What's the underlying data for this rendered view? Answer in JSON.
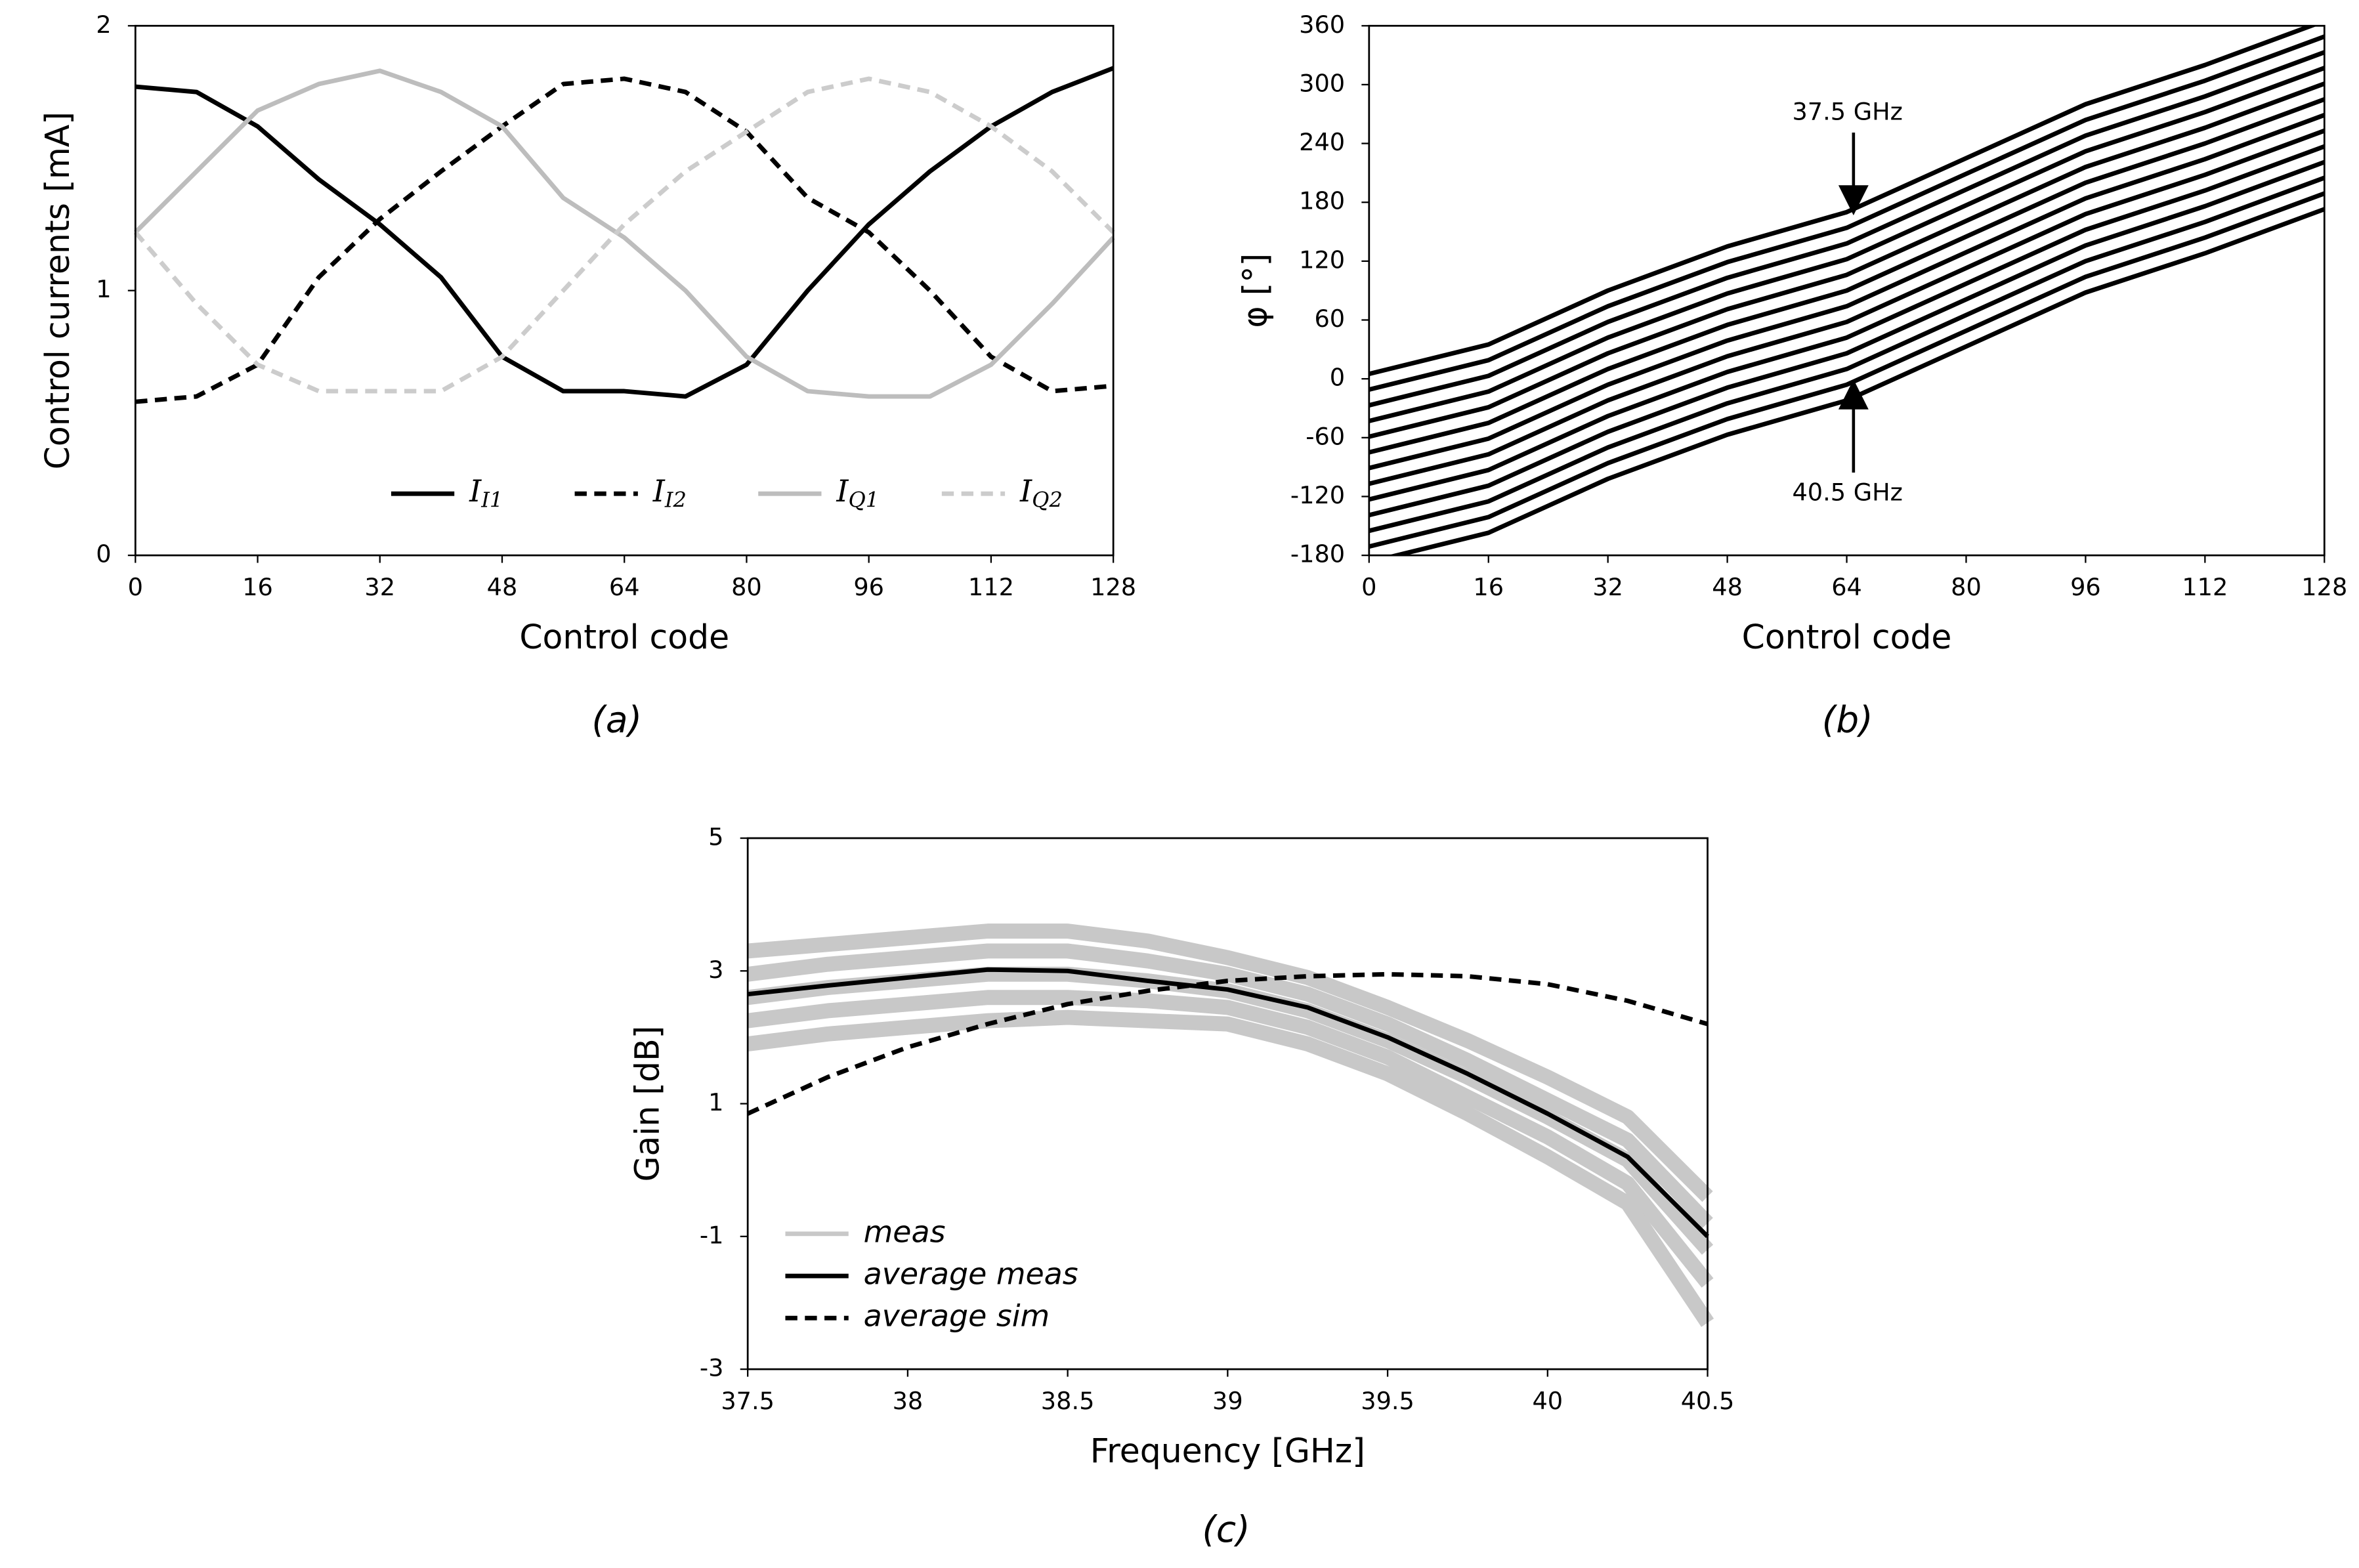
{
  "chart_data": [
    {
      "type": "line",
      "caption": "(a)",
      "xlabel": "Control code",
      "ylabel": "Control currents [mA]",
      "x": [
        0,
        8,
        16,
        24,
        32,
        40,
        48,
        56,
        64,
        72,
        80,
        88,
        96,
        104,
        112,
        120,
        128
      ],
      "xlim": [
        0,
        128
      ],
      "xticks": [
        0,
        16,
        32,
        48,
        64,
        80,
        96,
        112,
        128
      ],
      "ylim": [
        0,
        2
      ],
      "yticks": [
        0,
        1,
        2
      ],
      "legend": "bottom",
      "series": [
        {
          "name": "II1",
          "color": "#000000",
          "dash": false,
          "values": [
            1.77,
            1.75,
            1.62,
            1.42,
            1.25,
            1.05,
            0.75,
            0.62,
            0.62,
            0.6,
            0.72,
            1.0,
            1.25,
            1.45,
            1.62,
            1.75,
            1.84
          ]
        },
        {
          "name": "II2",
          "color": "#000000",
          "dash": true,
          "values": [
            0.58,
            0.6,
            0.72,
            1.05,
            1.27,
            1.45,
            1.62,
            1.78,
            1.8,
            1.75,
            1.6,
            1.35,
            1.22,
            1.0,
            0.75,
            0.62,
            0.64
          ]
        },
        {
          "name": "IQ1",
          "color": "#bdbdbd",
          "dash": false,
          "values": [
            1.22,
            1.45,
            1.68,
            1.78,
            1.83,
            1.75,
            1.62,
            1.35,
            1.2,
            1.0,
            0.75,
            0.62,
            0.6,
            0.6,
            0.72,
            0.95,
            1.2
          ]
        },
        {
          "name": "IQ2",
          "color": "#cccccc",
          "dash": true,
          "values": [
            1.22,
            0.95,
            0.72,
            0.62,
            0.62,
            0.62,
            0.75,
            1.0,
            1.25,
            1.45,
            1.6,
            1.75,
            1.8,
            1.75,
            1.62,
            1.45,
            1.22
          ]
        }
      ]
    },
    {
      "type": "line",
      "caption": "(b)",
      "xlabel": "Control code",
      "ylabel": "φ [°]",
      "x": [
        0,
        16,
        32,
        48,
        64,
        80,
        96,
        112,
        128
      ],
      "xlim": [
        0,
        128
      ],
      "xticks": [
        0,
        16,
        32,
        48,
        64,
        80,
        96,
        112,
        128
      ],
      "ylim": [
        -180,
        360
      ],
      "yticks": [
        -180,
        -120,
        -60,
        0,
        60,
        120,
        180,
        240,
        300,
        360
      ],
      "annotations": [
        "37.5 GHz",
        "40.5 GHz"
      ],
      "series": [
        {
          "color": "#000000",
          "values": [
            5,
            35,
            90,
            135,
            170,
            225,
            280,
            320,
            365
          ]
        },
        {
          "color": "#000000",
          "values": [
            -11,
            19,
            74,
            119,
            154,
            209,
            264,
            304,
            349
          ]
        },
        {
          "color": "#000000",
          "values": [
            -27,
            3,
            58,
            103,
            138,
            193,
            248,
            288,
            333
          ]
        },
        {
          "color": "#000000",
          "values": [
            -43,
            -13,
            42,
            87,
            122,
            177,
            232,
            272,
            317
          ]
        },
        {
          "color": "#000000",
          "values": [
            -59,
            -29,
            26,
            71,
            106,
            161,
            216,
            256,
            301
          ]
        },
        {
          "color": "#000000",
          "values": [
            -75,
            -45,
            10,
            55,
            90,
            145,
            200,
            240,
            285
          ]
        },
        {
          "color": "#000000",
          "values": [
            -91,
            -61,
            -6,
            39,
            74,
            129,
            184,
            224,
            269
          ]
        },
        {
          "color": "#000000",
          "values": [
            -107,
            -77,
            -22,
            23,
            58,
            113,
            168,
            208,
            253
          ]
        },
        {
          "color": "#000000",
          "values": [
            -123,
            -93,
            -38,
            7,
            42,
            97,
            152,
            192,
            237
          ]
        },
        {
          "color": "#000000",
          "values": [
            -139,
            -109,
            -54,
            -9,
            26,
            81,
            136,
            176,
            221
          ]
        },
        {
          "color": "#000000",
          "values": [
            -155,
            -125,
            -70,
            -25,
            10,
            65,
            120,
            160,
            205
          ]
        },
        {
          "color": "#000000",
          "values": [
            -171,
            -141,
            -86,
            -41,
            -6,
            49,
            104,
            144,
            189
          ]
        },
        {
          "color": "#000000",
          "values": [
            -187,
            -157,
            -102,
            -57,
            -22,
            33,
            88,
            128,
            173
          ]
        }
      ]
    },
    {
      "type": "line",
      "caption": "(c)",
      "xlabel": "Frequency [GHz]",
      "ylabel": "Gain [dB]",
      "x": [
        37.5,
        37.75,
        38,
        38.25,
        38.5,
        38.75,
        39,
        39.25,
        39.5,
        39.75,
        40,
        40.25,
        40.5
      ],
      "xlim": [
        37.5,
        40.5
      ],
      "xticks": [
        37.5,
        38,
        38.5,
        39,
        39.5,
        40,
        40.5
      ],
      "ylim": [
        -3,
        5
      ],
      "yticks": [
        -3,
        -1,
        1,
        3,
        5
      ],
      "legend": "lower left",
      "series": [
        {
          "name": "meas",
          "color": "#c8c8c8",
          "dash": false,
          "values": [
            [
              3.3,
              3.4,
              3.5,
              3.6,
              3.6,
              3.45,
              3.2,
              2.9,
              2.45,
              1.95,
              1.4,
              0.8,
              -0.4
            ],
            [
              2.95,
              3.1,
              3.2,
              3.3,
              3.3,
              3.15,
              2.95,
              2.65,
              2.2,
              1.65,
              1.05,
              0.45,
              -0.8
            ],
            [
              2.6,
              2.75,
              2.85,
              2.95,
              2.95,
              2.85,
              2.7,
              2.4,
              1.95,
              1.4,
              0.8,
              0.15,
              -1.2
            ],
            [
              2.25,
              2.4,
              2.5,
              2.6,
              2.6,
              2.55,
              2.45,
              2.15,
              1.7,
              1.1,
              0.5,
              -0.2,
              -1.7
            ],
            [
              1.9,
              2.05,
              2.15,
              2.25,
              2.3,
              2.25,
              2.2,
              1.9,
              1.45,
              0.85,
              0.2,
              -0.5,
              -2.3
            ]
          ]
        },
        {
          "name": "average meas",
          "color": "#000000",
          "dash": false,
          "values": [
            2.65,
            2.78,
            2.9,
            3.02,
            3.0,
            2.85,
            2.72,
            2.45,
            2.0,
            1.45,
            0.85,
            0.2,
            -1.0
          ]
        },
        {
          "name": "average sim",
          "color": "#000000",
          "dash": true,
          "values": [
            0.85,
            1.4,
            1.85,
            2.2,
            2.5,
            2.7,
            2.85,
            2.92,
            2.95,
            2.92,
            2.8,
            2.55,
            2.2
          ]
        }
      ]
    }
  ]
}
